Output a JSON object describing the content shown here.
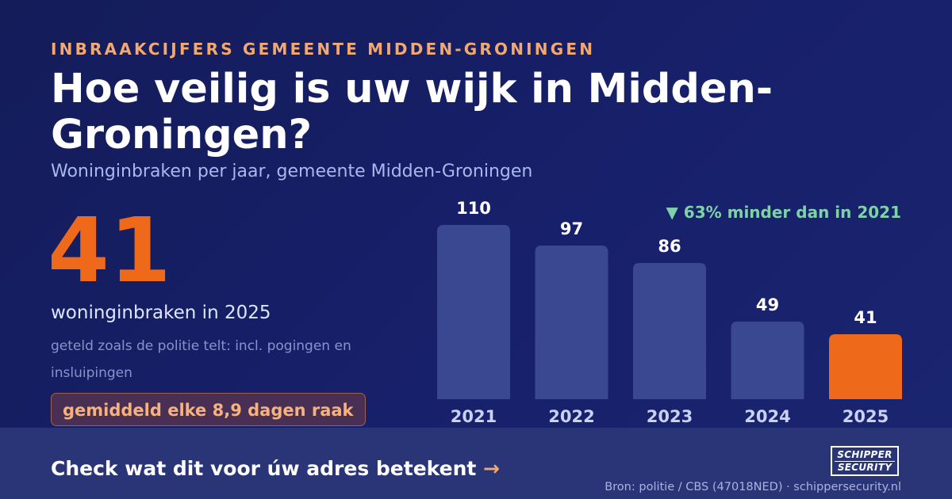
{
  "eyebrow": "INBRAAKCIJFERS GEMEENTE MIDDEN-GRONINGEN",
  "headline": "Hoe veilig is uw wijk in Midden-Groningen?",
  "subtitle": "Woninginbraken per jaar, gemeente Midden-Groningen",
  "stat": {
    "value": "41",
    "label": "woninginbraken in 2025",
    "note": "geteld zoals de politie telt: incl. pogingen en insluipingen",
    "badge": "gemiddeld elke 8,9 dagen raak"
  },
  "callout": "▼ 63% minder dan in 2021",
  "cta": {
    "text": "Check wat dit voor úw adres betekent",
    "arrow": "→"
  },
  "logo": {
    "line1": "SCHIPPER",
    "line2": "SECURITY"
  },
  "source": "Bron: politie / CBS (47018NED) · schippersecurity.nl",
  "colors": {
    "bar": "#3a4891",
    "highlight": "#ee6a1a",
    "accent": "#f2a86e",
    "positive": "#7fd1a8"
  },
  "chart_data": {
    "type": "bar",
    "title": "",
    "xlabel": "",
    "ylabel": "",
    "categories": [
      "2021",
      "2022",
      "2023",
      "2024",
      "2025"
    ],
    "values": [
      110,
      97,
      86,
      49,
      41
    ],
    "ylim": [
      0,
      110
    ],
    "highlight_category": "2025",
    "grid": false,
    "legend": "none"
  }
}
